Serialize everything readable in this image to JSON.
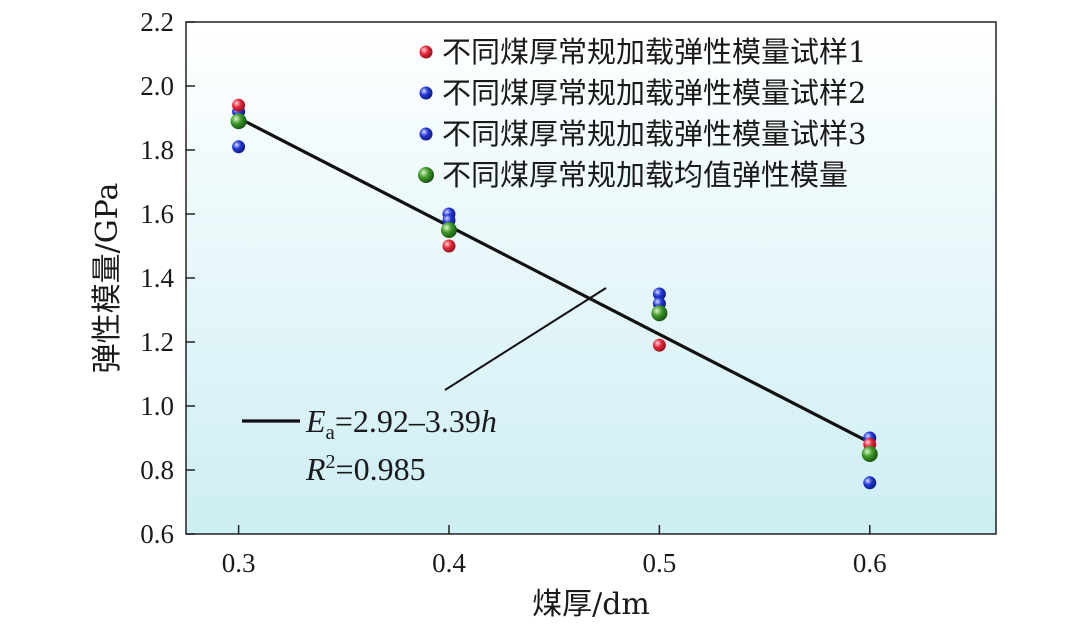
{
  "chart_data": {
    "type": "scatter",
    "xlabel": "煤厚/dm",
    "ylabel": "弹性模量/GPa",
    "xlim": [
      0.275,
      0.66
    ],
    "ylim": [
      0.6,
      2.2
    ],
    "xticks": [
      "0.3",
      "0.4",
      "0.5",
      "0.6"
    ],
    "yticks": [
      "0.6",
      "0.8",
      "1.0",
      "1.2",
      "1.4",
      "1.6",
      "1.8",
      "2.0",
      "2.2"
    ],
    "grid": false,
    "legend_position": "top-right",
    "series": [
      {
        "name": "不同煤厚常规加载弹性模量试样1",
        "color": "#e8273a",
        "points": [
          [
            0.3,
            1.94
          ],
          [
            0.4,
            1.5
          ],
          [
            0.5,
            1.19
          ],
          [
            0.6,
            0.88
          ]
        ]
      },
      {
        "name": "不同煤厚常规加载弹性模量试样2",
        "color": "#2337d8",
        "points": [
          [
            0.3,
            1.92
          ],
          [
            0.4,
            1.58
          ],
          [
            0.5,
            1.32
          ],
          [
            0.6,
            0.9
          ]
        ]
      },
      {
        "name": "不同煤厚常规加载弹性模量试样3",
        "color": "#2337d8",
        "points": [
          [
            0.3,
            1.81
          ],
          [
            0.4,
            1.6
          ],
          [
            0.5,
            1.35
          ],
          [
            0.6,
            0.76
          ]
        ]
      },
      {
        "name": "不同煤厚常规加载均值弹性模量",
        "color": "#2f8a1e",
        "points": [
          [
            0.3,
            1.89
          ],
          [
            0.4,
            1.55
          ],
          [
            0.5,
            1.29
          ],
          [
            0.6,
            0.85
          ]
        ]
      }
    ],
    "fit_line": {
      "x": [
        0.3,
        0.6
      ],
      "y": [
        1.9,
        0.886
      ],
      "color": "#111111"
    },
    "annotation": {
      "equation_var": "E",
      "equation_sub": "a",
      "equation_rest": "=2.92–3.39",
      "equation_var2": "h",
      "r2_var": "R",
      "r2_sup": "2",
      "r2_rest": "=0.985"
    }
  }
}
